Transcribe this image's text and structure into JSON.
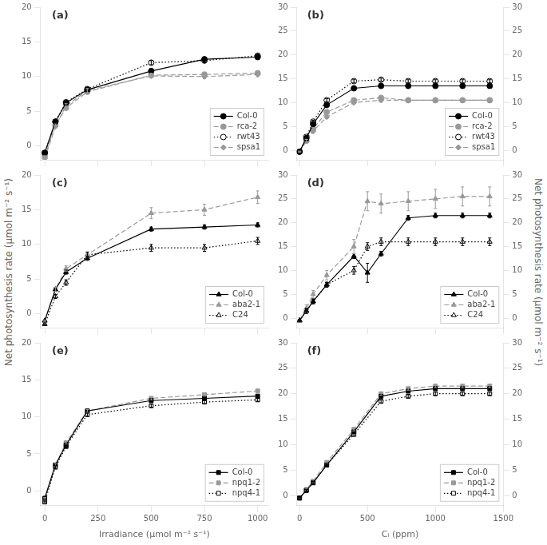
{
  "chart_data": [
    {
      "type": "line",
      "annotations": [
        "(a)"
      ],
      "x": [
        0,
        50,
        100,
        200,
        500,
        750,
        1000
      ],
      "series": [
        {
          "name": "Col-0",
          "color": "#000000",
          "marker": "circle",
          "line_style": "solid",
          "values": [
            -1.0,
            3.5,
            6.2,
            8.1,
            10.8,
            12.5,
            12.8
          ],
          "errors": [
            0.1,
            0.2,
            0.2,
            0.2,
            0.3,
            0.3,
            0.3
          ]
        },
        {
          "name": "rca-2",
          "color": "#999999",
          "marker": "circle",
          "line_style": "dashed",
          "values": [
            -1.5,
            3.0,
            5.5,
            7.8,
            10.2,
            10.3,
            10.5
          ],
          "errors": [
            0.1,
            0.2,
            0.2,
            0.3,
            0.3,
            0.3,
            0.3
          ]
        },
        {
          "name": "rwt43",
          "color": "#000000",
          "marker": "circle-open",
          "line_style": "dotted",
          "values": [
            -1.0,
            3.5,
            6.3,
            8.2,
            12.0,
            12.3,
            13.0
          ],
          "errors": [
            0.1,
            0.2,
            0.2,
            0.2,
            0.3,
            0.3,
            0.3
          ]
        },
        {
          "name": "spsa1",
          "color": "#999999",
          "marker": "diamond",
          "line_style": "dashed",
          "values": [
            -1.8,
            2.8,
            5.8,
            8.0,
            10.1,
            10.0,
            10.3
          ],
          "errors": [
            0.1,
            0.2,
            0.3,
            0.3,
            0.3,
            0.3,
            0.3
          ]
        }
      ],
      "xlim": [
        -20,
        1050
      ],
      "xticks": [
        0,
        250,
        500,
        750,
        1000
      ],
      "ylim": [
        -2,
        20
      ],
      "yticks": [
        0,
        5,
        10,
        15,
        20
      ],
      "grid": false,
      "legend": "lower right",
      "tick_labels": "y"
    },
    {
      "type": "line",
      "annotations": [
        "(b)"
      ],
      "x": [
        0,
        50,
        100,
        200,
        400,
        600,
        800,
        1000,
        1200,
        1400
      ],
      "series": [
        {
          "name": "Col-0",
          "color": "#000000",
          "marker": "circle",
          "line_style": "solid",
          "values": [
            -0.3,
            2.5,
            5.5,
            9.5,
            13.0,
            13.5,
            13.5,
            13.5,
            13.5,
            13.5
          ],
          "errors": [
            0.1,
            0.3,
            0.3,
            0.3,
            0.3,
            0.3,
            0.3,
            0.3,
            0.3,
            0.3
          ]
        },
        {
          "name": "rca-2",
          "color": "#999999",
          "marker": "circle",
          "line_style": "dashed",
          "values": [
            -0.3,
            2.0,
            4.5,
            8.0,
            10.5,
            11.0,
            10.5,
            10.5,
            10.5,
            10.5
          ],
          "errors": [
            0.1,
            0.3,
            0.3,
            0.3,
            0.3,
            0.3,
            0.3,
            0.3,
            0.3,
            0.3
          ]
        },
        {
          "name": "rwt43",
          "color": "#000000",
          "marker": "circle-open",
          "line_style": "dotted",
          "values": [
            -0.3,
            2.8,
            6.0,
            10.5,
            14.5,
            14.8,
            14.5,
            14.5,
            14.5,
            14.5
          ],
          "errors": [
            0.1,
            0.3,
            0.3,
            0.3,
            0.3,
            0.3,
            0.3,
            0.3,
            0.3,
            0.3
          ]
        },
        {
          "name": "spsa1",
          "color": "#999999",
          "marker": "diamond",
          "line_style": "dashed",
          "values": [
            -0.3,
            2.0,
            4.0,
            7.0,
            10.0,
            10.5,
            10.5,
            10.5,
            10.5,
            10.5
          ],
          "errors": [
            0.1,
            0.3,
            0.3,
            0.3,
            0.3,
            0.4,
            0.4,
            0.4,
            0.4,
            0.4
          ]
        }
      ],
      "xlim": [
        -20,
        1500
      ],
      "xticks": [
        0,
        500,
        1000,
        1500
      ],
      "ylim": [
        -2,
        30
      ],
      "yticks": [
        0,
        5,
        10,
        15,
        20,
        25,
        30
      ],
      "y2lim": [
        -2,
        30
      ],
      "y2ticks": [
        0,
        5,
        10,
        15,
        20,
        25,
        30
      ],
      "grid": false,
      "legend": "lower right",
      "tick_labels": "y"
    },
    {
      "type": "line",
      "annotations": [
        "(c)"
      ],
      "x": [
        0,
        50,
        100,
        200,
        500,
        750,
        1000
      ],
      "series": [
        {
          "name": "Col-0",
          "color": "#000000",
          "marker": "triangle",
          "line_style": "solid",
          "values": [
            -1.0,
            3.5,
            6.0,
            8.0,
            12.2,
            12.5,
            12.8
          ],
          "errors": [
            0.1,
            0.2,
            0.3,
            0.3,
            0.3,
            0.3,
            0.3
          ]
        },
        {
          "name": "aba2-1",
          "color": "#999999",
          "marker": "triangle",
          "line_style": "dashed",
          "values": [
            -1.0,
            3.5,
            6.5,
            8.5,
            14.5,
            15.0,
            16.8
          ],
          "errors": [
            0.1,
            0.3,
            0.4,
            0.4,
            0.8,
            0.8,
            0.9
          ]
        },
        {
          "name": "C24",
          "color": "#000000",
          "marker": "triangle-open",
          "line_style": "dotted",
          "values": [
            -1.5,
            2.5,
            4.5,
            8.5,
            9.5,
            9.5,
            10.5
          ],
          "errors": [
            0.1,
            0.3,
            0.4,
            0.4,
            0.5,
            0.5,
            0.5
          ]
        }
      ],
      "xlim": [
        -20,
        1050
      ],
      "xticks": [
        0,
        250,
        500,
        750,
        1000
      ],
      "ylim": [
        -2,
        20
      ],
      "yticks": [
        0,
        5,
        10,
        15,
        20
      ],
      "ylabel": "Net photosynthesis rate (μmol m⁻² s⁻¹)",
      "grid": false,
      "legend": "lower right",
      "tick_labels": "y"
    },
    {
      "type": "line",
      "annotations": [
        "(d)"
      ],
      "x": [
        0,
        50,
        100,
        200,
        400,
        500,
        600,
        800,
        1000,
        1200,
        1400
      ],
      "series": [
        {
          "name": "Col-0",
          "color": "#000000",
          "marker": "triangle",
          "line_style": "solid",
          "values": [
            -0.5,
            1.5,
            3.5,
            7.0,
            13.0,
            9.5,
            13.5,
            21.0,
            21.5,
            21.5,
            21.5
          ],
          "errors": [
            0.1,
            0.5,
            0.5,
            0.5,
            0.5,
            2.0,
            0.5,
            0.5,
            0.5,
            0.5,
            0.5
          ]
        },
        {
          "name": "aba2-1",
          "color": "#999999",
          "marker": "triangle",
          "line_style": "dashed",
          "values": [
            -0.5,
            2.0,
            5.0,
            9.0,
            15.0,
            24.5,
            24.0,
            24.5,
            25.0,
            25.5,
            25.5
          ],
          "errors": [
            0.1,
            0.8,
            0.8,
            1.0,
            1.5,
            2.0,
            2.0,
            2.0,
            2.0,
            2.0,
            2.0
          ]
        },
        {
          "name": "C24",
          "color": "#000000",
          "marker": "triangle-open",
          "line_style": "dotted",
          "values": [
            -0.5,
            1.5,
            3.5,
            7.0,
            10.0,
            15.0,
            16.0,
            16.0,
            16.0,
            16.0,
            16.0
          ],
          "errors": [
            0.1,
            0.5,
            0.5,
            0.5,
            0.8,
            0.8,
            0.8,
            0.8,
            0.8,
            0.8,
            0.8
          ]
        }
      ],
      "xlim": [
        -20,
        1500
      ],
      "xticks": [
        0,
        500,
        1000,
        1500
      ],
      "ylim": [
        -2,
        30
      ],
      "yticks": [
        0,
        5,
        10,
        15,
        20,
        25,
        30
      ],
      "y2lim": [
        -2,
        30
      ],
      "y2ticks": [
        0,
        5,
        10,
        15,
        20,
        25,
        30
      ],
      "y2label": "Net photosynthesis rate (μmol m⁻² s⁻¹)",
      "grid": false,
      "legend": "lower right",
      "tick_labels": "y"
    },
    {
      "type": "line",
      "annotations": [
        "(e)"
      ],
      "x": [
        0,
        50,
        100,
        200,
        500,
        750,
        1000
      ],
      "series": [
        {
          "name": "Col-0",
          "color": "#000000",
          "marker": "square",
          "line_style": "solid",
          "values": [
            -1.0,
            3.5,
            6.2,
            10.8,
            12.2,
            12.5,
            12.8
          ],
          "errors": [
            0.1,
            0.2,
            0.2,
            0.2,
            0.2,
            0.2,
            0.2
          ]
        },
        {
          "name": "npq1-2",
          "color": "#999999",
          "marker": "square",
          "line_style": "dashed",
          "values": [
            -1.0,
            3.5,
            6.5,
            10.8,
            12.5,
            13.0,
            13.5
          ],
          "errors": [
            0.1,
            0.2,
            0.2,
            0.2,
            0.2,
            0.2,
            0.2
          ]
        },
        {
          "name": "npq4-1",
          "color": "#000000",
          "marker": "square-open",
          "line_style": "dotted",
          "values": [
            -1.5,
            3.2,
            6.0,
            10.3,
            11.5,
            12.0,
            12.3
          ],
          "errors": [
            0.1,
            0.2,
            0.2,
            0.2,
            0.2,
            0.2,
            0.2
          ]
        }
      ],
      "xlim": [
        -20,
        1050
      ],
      "xticks": [
        0,
        250,
        500,
        750,
        1000
      ],
      "ylim": [
        -2,
        20
      ],
      "yticks": [
        0,
        5,
        10,
        15,
        20
      ],
      "xlabel": "Irradiance (μmol m⁻² s⁻¹)",
      "grid": false,
      "legend": "lower right"
    },
    {
      "type": "line",
      "annotations": [
        "(f)"
      ],
      "x": [
        0,
        50,
        100,
        200,
        400,
        600,
        800,
        1000,
        1200,
        1400
      ],
      "series": [
        {
          "name": "Col-0",
          "color": "#000000",
          "marker": "square",
          "line_style": "solid",
          "values": [
            -0.5,
            1.0,
            2.5,
            6.0,
            12.5,
            19.5,
            20.5,
            21.0,
            21.0,
            21.0
          ],
          "errors": [
            0.1,
            0.2,
            0.3,
            0.3,
            0.3,
            0.3,
            0.3,
            0.3,
            0.3,
            0.3
          ]
        },
        {
          "name": "npq1-2",
          "color": "#999999",
          "marker": "square",
          "line_style": "dashed",
          "values": [
            -0.5,
            1.2,
            2.8,
            6.5,
            13.0,
            20.0,
            21.0,
            21.5,
            21.5,
            21.5
          ],
          "errors": [
            0.1,
            0.2,
            0.3,
            0.3,
            0.3,
            0.3,
            0.3,
            0.3,
            0.3,
            0.3
          ]
        },
        {
          "name": "npq4-1",
          "color": "#000000",
          "marker": "square-open",
          "line_style": "dotted",
          "values": [
            -0.5,
            1.0,
            2.5,
            6.0,
            12.0,
            18.5,
            19.5,
            20.0,
            20.0,
            20.0
          ],
          "errors": [
            0.1,
            0.2,
            0.3,
            0.3,
            0.3,
            0.3,
            0.3,
            0.3,
            0.3,
            0.3
          ]
        }
      ],
      "xlim": [
        -20,
        1500
      ],
      "xticks": [
        0,
        500,
        1000,
        1500
      ],
      "ylim": [
        -2,
        30
      ],
      "yticks": [
        0,
        5,
        10,
        15,
        20,
        25,
        30
      ],
      "y2lim": [
        -2,
        30
      ],
      "y2ticks": [
        0,
        5,
        10,
        15,
        20,
        25,
        30
      ],
      "xlabel": "Cᵢ (ppm)",
      "grid": false,
      "legend": "lower right"
    }
  ]
}
